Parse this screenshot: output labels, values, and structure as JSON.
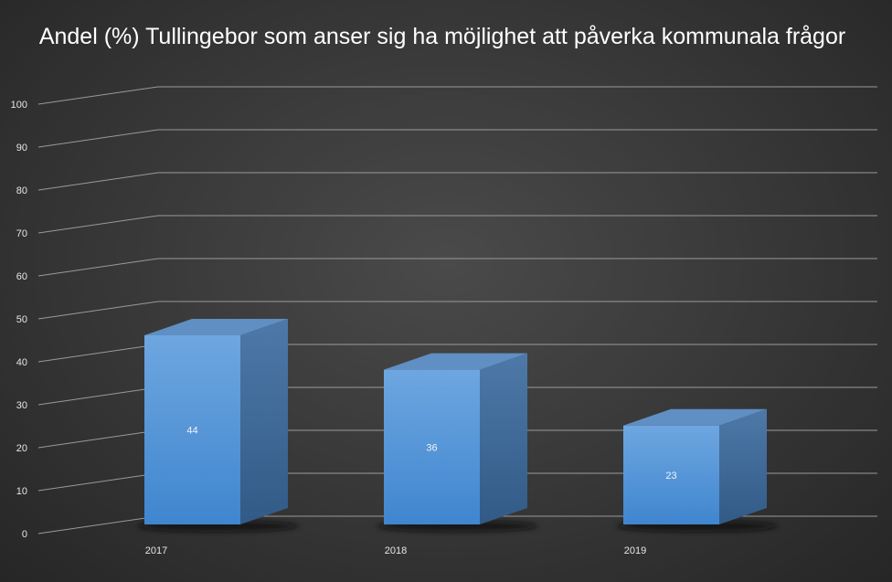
{
  "chart_data": {
    "type": "bar",
    "title": "Andel (%) Tullingebor som anser sig ha möjlighet att påverka kommunala frågor",
    "categories": [
      "2017",
      "2018",
      "2019"
    ],
    "values": [
      44,
      36,
      23
    ],
    "data_labels": [
      "44",
      "36",
      "23"
    ],
    "y_ticks": [
      "0",
      "10",
      "20",
      "30",
      "40",
      "50",
      "60",
      "70",
      "80",
      "90",
      "100"
    ],
    "ylim": [
      0,
      100
    ],
    "grid": true,
    "legend": "none",
    "bar_color": "#5b9bd5"
  }
}
